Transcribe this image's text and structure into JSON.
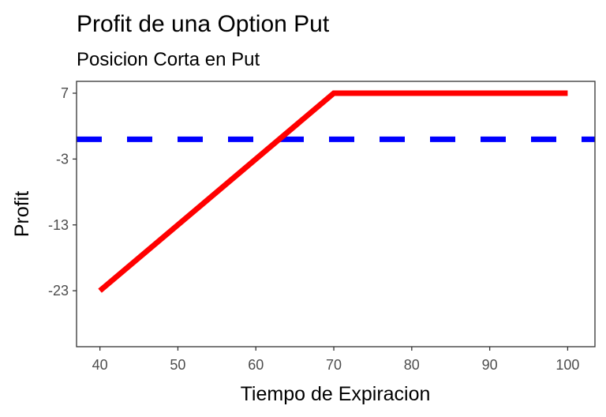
{
  "chart_data": {
    "type": "line",
    "title": "Profit de una Option Put",
    "subtitle": "Posicion Corta en Put",
    "xlabel": "Tiempo de Expiracion",
    "ylabel": "Profit",
    "xlim": [
      37,
      103.5
    ],
    "ylim": [
      -31.5,
      8.8
    ],
    "x_ticks": [
      40,
      50,
      60,
      70,
      80,
      90,
      100
    ],
    "x_tick_labels": [
      "40",
      "50",
      "60",
      "70",
      "80",
      "90",
      "100"
    ],
    "y_ticks": [
      7,
      -3,
      -13,
      -23
    ],
    "y_tick_labels": [
      "7",
      "-3",
      "-13",
      "-23"
    ],
    "grid": false,
    "series": [
      {
        "x": [
          40,
          70,
          100
        ],
        "y": [
          -23,
          7,
          7
        ],
        "color": "#ff0000",
        "style": "solid"
      }
    ],
    "hlines": [
      {
        "y": 0,
        "color": "#0000ff",
        "style": "dashed"
      }
    ]
  }
}
